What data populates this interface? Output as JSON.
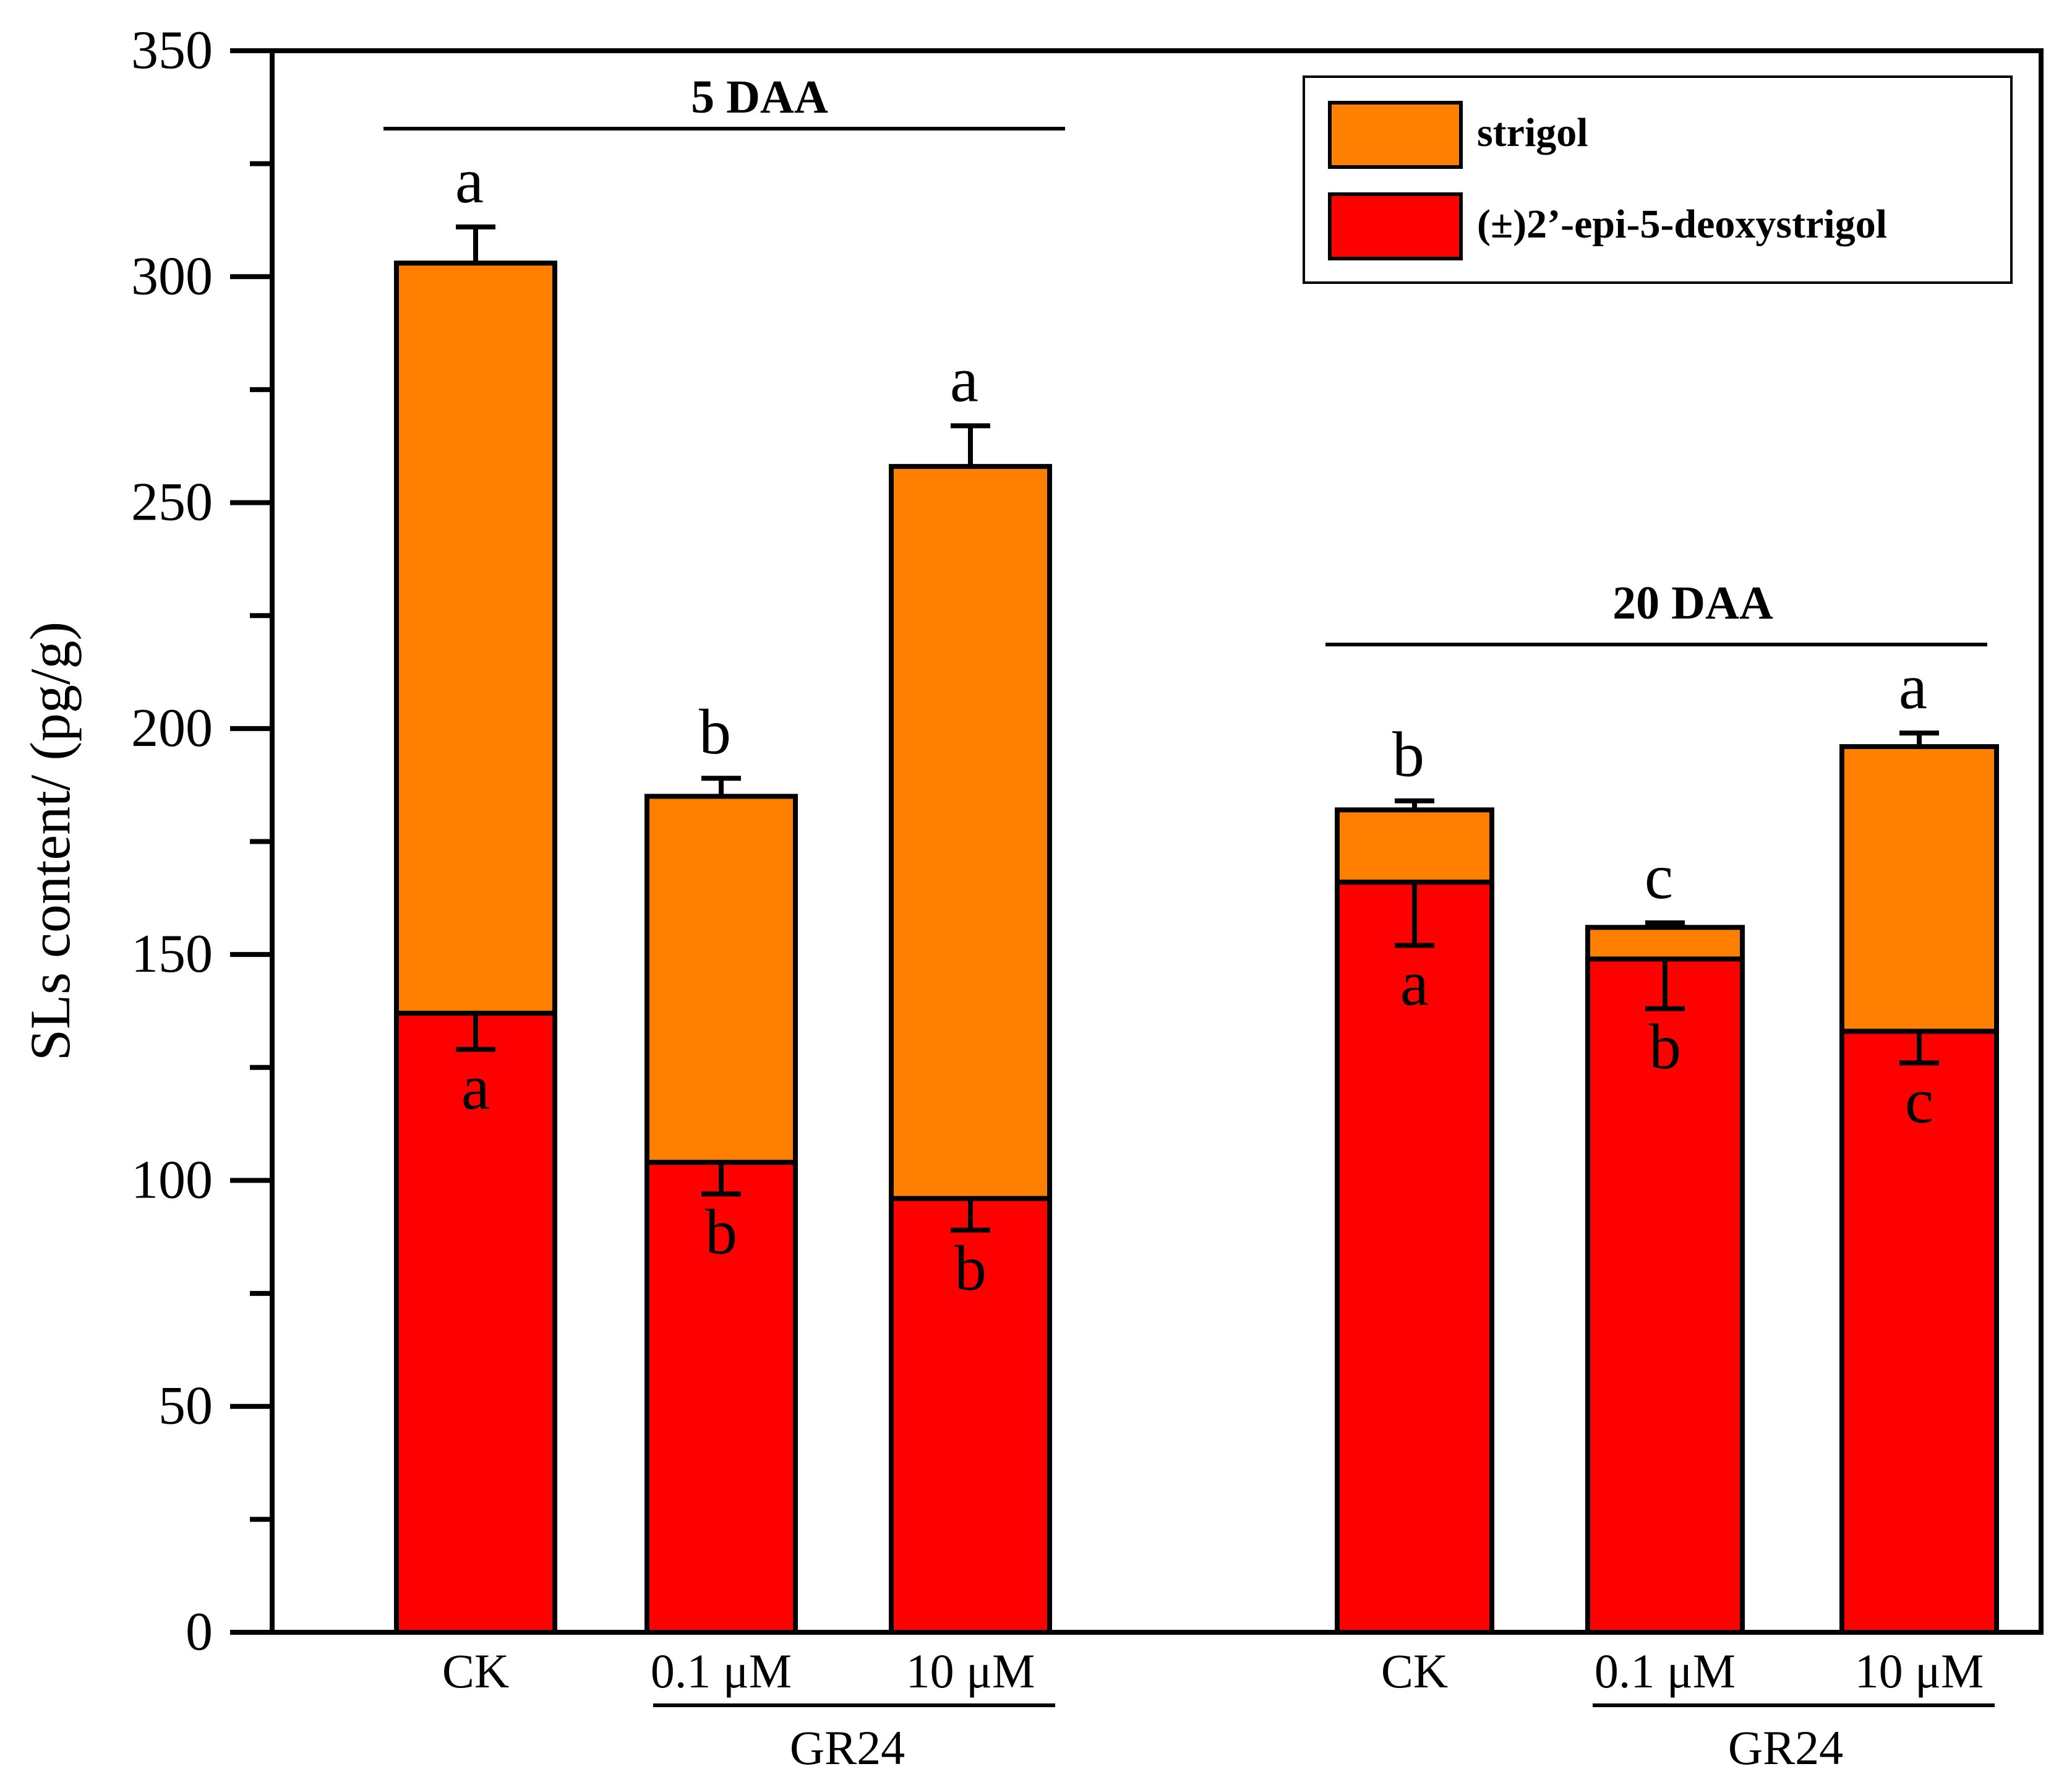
{
  "chart_data": {
    "type": "bar",
    "stacked": true,
    "ylabel": "SLs content/ (pg/g)",
    "ylim": [
      0,
      350
    ],
    "yticks": [
      0,
      50,
      100,
      150,
      200,
      250,
      300,
      350
    ],
    "grid": false,
    "legend_position": "top-right",
    "groups": [
      {
        "label": "5 DAA",
        "treatment_label": "GR24",
        "categories": [
          "CK",
          "0.1 μM",
          "10 μM"
        ]
      },
      {
        "label": "20 DAA",
        "treatment_label": "GR24",
        "categories": [
          "CK",
          "0.1 μM",
          "10 μM"
        ]
      }
    ],
    "series": [
      {
        "name": "(±)2’-epi-5-deoxystrigol",
        "color": "#ff0000",
        "values": [
          137,
          104,
          96,
          166,
          149,
          133
        ],
        "errors": [
          8,
          7,
          7,
          14,
          11,
          7
        ],
        "letters": [
          "a",
          "b",
          "b",
          "a",
          "b",
          "c"
        ]
      },
      {
        "name": "strigol",
        "color": "#ff8000",
        "values": [
          166,
          81,
          162,
          16,
          7,
          63
        ],
        "errors": [
          8,
          4,
          9,
          2,
          1,
          3
        ],
        "letters": [
          "a",
          "b",
          "a",
          "b",
          "c",
          "a"
        ]
      }
    ]
  }
}
